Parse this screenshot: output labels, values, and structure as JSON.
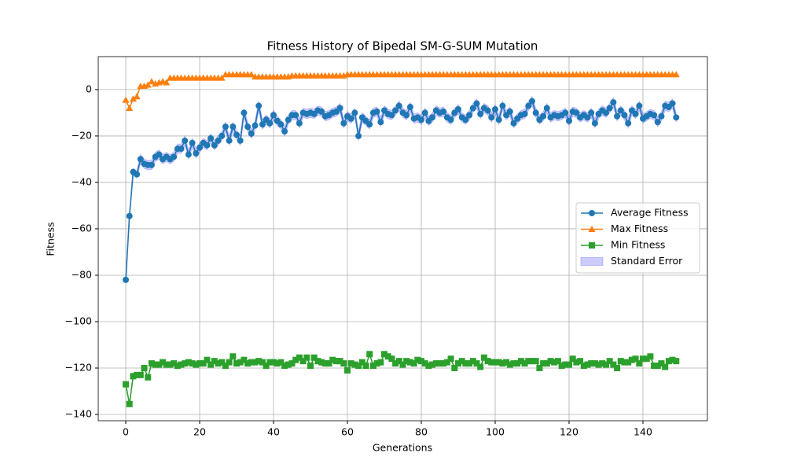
{
  "chart_data": {
    "type": "line",
    "title": "Fitness History of Bipedal SM-G-SUM Mutation",
    "x_label": "Generations",
    "y_label": "Fitness",
    "xlim": [
      -7.45,
      157.45
    ],
    "ylim": [
      -142.7,
      14.2
    ],
    "xticks": [
      0,
      20,
      40,
      60,
      80,
      100,
      120,
      140
    ],
    "yticks": [
      {
        "value": -140,
        "label": "−140"
      },
      {
        "value": -120,
        "label": "−120"
      },
      {
        "value": -100,
        "label": "−100"
      },
      {
        "value": -80,
        "label": "−80"
      },
      {
        "value": -60,
        "label": "−60"
      },
      {
        "value": -40,
        "label": "−40"
      },
      {
        "value": -20,
        "label": "−20"
      },
      0
    ],
    "grid": true,
    "legend": "center right",
    "x": [
      0,
      1,
      2,
      3,
      4,
      5,
      6,
      7,
      8,
      9,
      10,
      11,
      12,
      13,
      14,
      15,
      16,
      17,
      18,
      19,
      20,
      21,
      22,
      23,
      24,
      25,
      26,
      27,
      28,
      29,
      30,
      31,
      32,
      33,
      34,
      35,
      36,
      37,
      38,
      39,
      40,
      41,
      42,
      43,
      44,
      45,
      46,
      47,
      48,
      49,
      50,
      51,
      52,
      53,
      54,
      55,
      56,
      57,
      58,
      59,
      60,
      61,
      62,
      63,
      64,
      65,
      66,
      67,
      68,
      69,
      70,
      71,
      72,
      73,
      74,
      75,
      76,
      77,
      78,
      79,
      80,
      81,
      82,
      83,
      84,
      85,
      86,
      87,
      88,
      89,
      90,
      91,
      92,
      93,
      94,
      95,
      96,
      97,
      98,
      99,
      100,
      101,
      102,
      103,
      104,
      105,
      106,
      107,
      108,
      109,
      110,
      111,
      112,
      113,
      114,
      115,
      116,
      117,
      118,
      119,
      120,
      121,
      122,
      123,
      124,
      125,
      126,
      127,
      128,
      129,
      130,
      131,
      132,
      133,
      134,
      135,
      136,
      137,
      138,
      139,
      140,
      141,
      142,
      143,
      144,
      145,
      146,
      147,
      148,
      149
    ],
    "series": [
      {
        "name": "Average Fitness",
        "color": "#1f77b4",
        "marker": "circle",
        "values": [
          -82,
          -54.5,
          -35.5,
          -36.5,
          -30,
          -32,
          -32.5,
          -32.5,
          -29,
          -28,
          -30,
          -29,
          -30,
          -29,
          -25.5,
          -25.5,
          -22,
          -28,
          -23,
          -27.5,
          -25,
          -23,
          -24,
          -21,
          -24,
          -22,
          -20,
          -16,
          -22,
          -16,
          -19.5,
          -22,
          -10,
          -16,
          -19,
          -15.5,
          -7,
          -15,
          -13,
          -14.5,
          -11,
          -13.5,
          -15,
          -18,
          -13,
          -11,
          -11,
          -14.5,
          -10,
          -10.5,
          -10,
          -10.5,
          -9,
          -9.5,
          -11.5,
          -11,
          -10,
          -9.5,
          -8,
          -14.5,
          -11.5,
          -12.5,
          -10,
          -20,
          -12,
          -13.5,
          -15,
          -10,
          -9.5,
          -14,
          -9,
          -10.5,
          -11,
          -9,
          -7,
          -10,
          -11,
          -7.5,
          -12.5,
          -12,
          -13,
          -10,
          -13.5,
          -12,
          -9,
          -10,
          -9.5,
          -12,
          -13,
          -10,
          -8.5,
          -12,
          -13,
          -11,
          -8,
          -6,
          -10.5,
          -8,
          -9,
          -12,
          -8.5,
          -13,
          -7,
          -11,
          -9.5,
          -14.5,
          -12.5,
          -11,
          -10.5,
          -7,
          -5,
          -10,
          -13,
          -11.5,
          -8,
          -12,
          -11,
          -11.5,
          -11,
          -10,
          -13.5,
          -9.5,
          -10,
          -12,
          -11,
          -12,
          -10,
          -14.5,
          -10.5,
          -9,
          -10,
          -8,
          -5.5,
          -11.5,
          -9,
          -11,
          -14.5,
          -9,
          -10.5,
          -7,
          -12.5,
          -11.5,
          -10.5,
          -11,
          -14,
          -11.5,
          -7,
          -7.5,
          -6,
          -12
        ]
      },
      {
        "name": "Max Fitness",
        "color": "#ff7f0e",
        "marker": "triangle",
        "values": [
          -4.5,
          -8,
          -4,
          -3,
          1.5,
          1.5,
          2,
          3.5,
          2.5,
          3,
          3.5,
          3,
          5,
          5,
          5,
          5,
          5,
          5,
          5,
          5,
          5,
          5,
          5,
          5,
          5,
          5,
          5,
          6.5,
          6.5,
          6.5,
          6.5,
          6.5,
          6.5,
          6.5,
          6.5,
          5.5,
          5.5,
          5.5,
          5.5,
          5.5,
          5.5,
          5.5,
          5.5,
          5.5,
          5.5,
          6,
          6,
          6,
          6,
          6,
          6,
          6,
          6,
          6,
          6,
          6,
          6,
          6,
          6,
          6,
          6.5,
          6.5,
          6.5,
          6.5,
          6.5,
          6.5,
          6.5,
          6.5,
          6.5,
          6.5,
          6.5,
          6.5,
          6.5,
          6.5,
          6.5,
          6.5,
          6.5,
          6.5,
          6.5,
          6.5,
          6.5,
          6.5,
          6.5,
          6.5,
          6.5,
          6.5,
          6.5,
          6.5,
          6.5,
          6.5,
          6.5,
          6.5,
          6.5,
          6.5,
          6.5,
          6.5,
          6.5,
          6.5,
          6.5,
          6.5,
          6.5,
          6.5,
          6.5,
          6.5,
          6.5,
          6.5,
          6.5,
          6.5,
          6.5,
          6.5,
          6.5,
          6.5,
          6.5,
          6.5,
          6.5,
          6.5,
          6.5,
          6.5,
          6.5,
          6.5,
          6.5,
          6.5,
          6.5,
          6.5,
          6.5,
          6.5,
          6.5,
          6.5,
          6.5,
          6.5,
          6.5,
          6.5,
          6.5,
          6.5,
          6.5,
          6.5,
          6.5,
          6.5,
          6.5,
          6.5,
          6.5,
          6.5,
          6.5,
          6.5,
          6.5,
          6.5,
          6.5,
          6.5,
          6.5,
          6.5
        ]
      },
      {
        "name": "Min Fitness",
        "color": "#2ca02c",
        "marker": "square",
        "values": [
          -127,
          -135.5,
          -123.5,
          -123,
          -123,
          -120,
          -124,
          -118,
          -118.5,
          -118.5,
          -117.5,
          -118.5,
          -118.5,
          -118,
          -119,
          -118.5,
          -118,
          -117.5,
          -118,
          -118.5,
          -118,
          -118,
          -116.5,
          -118.5,
          -117,
          -118,
          -117.5,
          -119,
          -117.5,
          -115,
          -118,
          -117.5,
          -116.5,
          -118,
          -117.5,
          -117.5,
          -117,
          -117.5,
          -119,
          -117.5,
          -117.5,
          -118,
          -117.5,
          -119,
          -118.5,
          -118,
          -116.5,
          -115.5,
          -117,
          -115.5,
          -119,
          -115.5,
          -117,
          -117.5,
          -118,
          -118,
          -116.5,
          -117,
          -117,
          -118,
          -121,
          -118,
          -118.5,
          -119,
          -117.5,
          -119,
          -114,
          -119,
          -118,
          -117.5,
          -114,
          -115,
          -116,
          -118,
          -117,
          -118.5,
          -117,
          -117.5,
          -118,
          -116.5,
          -117,
          -118,
          -119,
          -118.5,
          -118,
          -118,
          -118,
          -117.5,
          -116,
          -120,
          -118,
          -117,
          -118,
          -118,
          -117,
          -118,
          -119.5,
          -115.5,
          -117,
          -117.5,
          -117.5,
          -117.5,
          -118,
          -117.5,
          -118.5,
          -118,
          -118,
          -117,
          -118,
          -117,
          -117,
          -117,
          -120,
          -118,
          -118,
          -117,
          -117.5,
          -117,
          -119,
          -118.5,
          -118.5,
          -116,
          -117.5,
          -117,
          -119,
          -118.5,
          -118,
          -118,
          -118.5,
          -118,
          -118.5,
          -117,
          -118.5,
          -120,
          -117,
          -117.5,
          -117.5,
          -116.5,
          -116,
          -118,
          -116,
          -116,
          -115,
          -119,
          -119,
          -118,
          -119.5,
          -117,
          -116.5,
          -117
        ]
      }
    ],
    "std_error": {
      "name": "Standard Error",
      "color": "#0000ff",
      "values": [
        1,
        1,
        1.5,
        1.5,
        2,
        2,
        2,
        2,
        2,
        2,
        2,
        2,
        2,
        2,
        2,
        2,
        2,
        2,
        2,
        2,
        2,
        2,
        2,
        2,
        2,
        2,
        2,
        2,
        2,
        2,
        2,
        2,
        2,
        2,
        2,
        2,
        2,
        2,
        2,
        2,
        2,
        2,
        2,
        2,
        2,
        2,
        2,
        2,
        2,
        2,
        2,
        2,
        2,
        2,
        2,
        2,
        2,
        2,
        2,
        2,
        2,
        2,
        2,
        2,
        2,
        2,
        2,
        2,
        2,
        2,
        2,
        2,
        2,
        2,
        2,
        2,
        2,
        2,
        2,
        2,
        2,
        2,
        2,
        2,
        2,
        2,
        2,
        2,
        2,
        2,
        2,
        2,
        2,
        2,
        2,
        2,
        2,
        2,
        2,
        2,
        2,
        2,
        2,
        2,
        2,
        2,
        2,
        2,
        2,
        2,
        2,
        2,
        2,
        2,
        2,
        2,
        2,
        2,
        2,
        2,
        2,
        2,
        2,
        2,
        2,
        2,
        2,
        2,
        2,
        2,
        2,
        2,
        2,
        2,
        2,
        2,
        2,
        2,
        2,
        2,
        2,
        2,
        2,
        2,
        2,
        2,
        2,
        2,
        2,
        2
      ]
    }
  }
}
